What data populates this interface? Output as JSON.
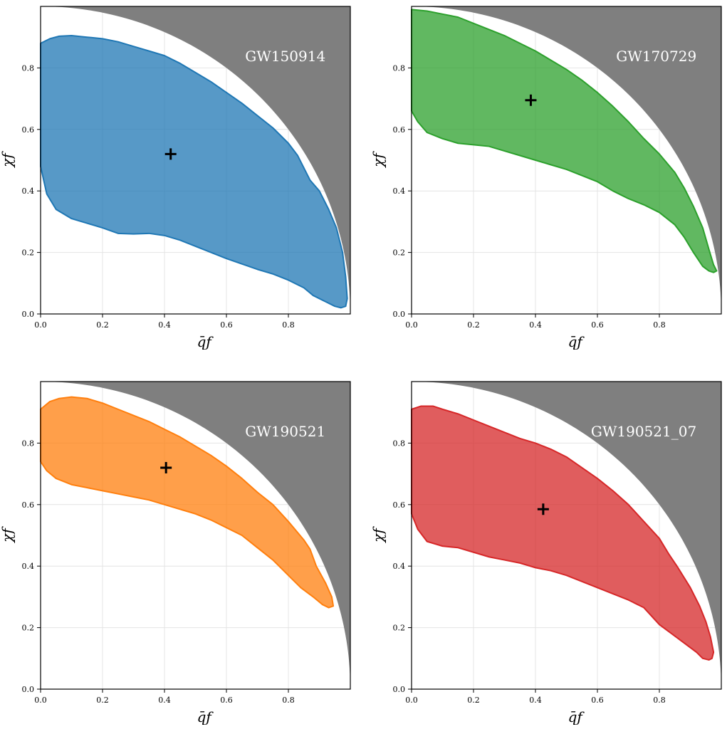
{
  "figure": {
    "shaded_region": "grey area above the unit circle chi_f^2 + qbar_f^2 = 1",
    "shade_color": "#7f7f7f"
  },
  "chart_data": [
    {
      "type": "area",
      "title": "",
      "event": "GW150914",
      "xlabel": "q̄f",
      "ylabel": "χf",
      "xlim": [
        0.0,
        1.0
      ],
      "ylim": [
        0.0,
        1.0
      ],
      "xticks": [
        "0.0",
        "0.2",
        "0.4",
        "0.6",
        "0.8"
      ],
      "yticks": [
        "0.0",
        "0.2",
        "0.4",
        "0.6",
        "0.8"
      ],
      "grid": true,
      "color": "#1f77b4",
      "marker": {
        "x": 0.42,
        "y": 0.52
      },
      "contour": [
        [
          0.0,
          0.88
        ],
        [
          0.03,
          0.895
        ],
        [
          0.06,
          0.903
        ],
        [
          0.1,
          0.905
        ],
        [
          0.15,
          0.9
        ],
        [
          0.2,
          0.895
        ],
        [
          0.25,
          0.885
        ],
        [
          0.3,
          0.87
        ],
        [
          0.35,
          0.855
        ],
        [
          0.4,
          0.84
        ],
        [
          0.45,
          0.815
        ],
        [
          0.5,
          0.785
        ],
        [
          0.55,
          0.755
        ],
        [
          0.6,
          0.72
        ],
        [
          0.65,
          0.685
        ],
        [
          0.7,
          0.645
        ],
        [
          0.75,
          0.605
        ],
        [
          0.8,
          0.555
        ],
        [
          0.83,
          0.515
        ],
        [
          0.85,
          0.475
        ],
        [
          0.87,
          0.435
        ],
        [
          0.9,
          0.4
        ],
        [
          0.93,
          0.34
        ],
        [
          0.955,
          0.28
        ],
        [
          0.975,
          0.2
        ],
        [
          0.985,
          0.12
        ],
        [
          0.99,
          0.05
        ],
        [
          0.985,
          0.025
        ],
        [
          0.97,
          0.02
        ],
        [
          0.95,
          0.025
        ],
        [
          0.92,
          0.04
        ],
        [
          0.88,
          0.06
        ],
        [
          0.85,
          0.085
        ],
        [
          0.8,
          0.11
        ],
        [
          0.75,
          0.13
        ],
        [
          0.7,
          0.145
        ],
        [
          0.6,
          0.18
        ],
        [
          0.5,
          0.22
        ],
        [
          0.45,
          0.24
        ],
        [
          0.4,
          0.255
        ],
        [
          0.35,
          0.262
        ],
        [
          0.3,
          0.26
        ],
        [
          0.25,
          0.262
        ],
        [
          0.2,
          0.28
        ],
        [
          0.15,
          0.295
        ],
        [
          0.1,
          0.31
        ],
        [
          0.05,
          0.34
        ],
        [
          0.02,
          0.39
        ],
        [
          0.0,
          0.48
        ]
      ]
    },
    {
      "type": "area",
      "title": "",
      "event": "GW170729",
      "xlabel": "q̄f",
      "ylabel": "χf",
      "xlim": [
        0.0,
        1.0
      ],
      "ylim": [
        0.0,
        1.0
      ],
      "xticks": [
        "0.0",
        "0.2",
        "0.4",
        "0.6",
        "0.8"
      ],
      "yticks": [
        "0.0",
        "0.2",
        "0.4",
        "0.6",
        "0.8"
      ],
      "grid": true,
      "color": "#2ca02c",
      "marker": {
        "x": 0.385,
        "y": 0.695
      },
      "contour": [
        [
          0.0,
          0.99
        ],
        [
          0.05,
          0.985
        ],
        [
          0.1,
          0.975
        ],
        [
          0.15,
          0.965
        ],
        [
          0.2,
          0.945
        ],
        [
          0.25,
          0.925
        ],
        [
          0.3,
          0.905
        ],
        [
          0.35,
          0.88
        ],
        [
          0.4,
          0.855
        ],
        [
          0.45,
          0.825
        ],
        [
          0.5,
          0.795
        ],
        [
          0.55,
          0.76
        ],
        [
          0.6,
          0.72
        ],
        [
          0.65,
          0.675
        ],
        [
          0.7,
          0.625
        ],
        [
          0.75,
          0.57
        ],
        [
          0.8,
          0.52
        ],
        [
          0.85,
          0.46
        ],
        [
          0.88,
          0.41
        ],
        [
          0.91,
          0.35
        ],
        [
          0.94,
          0.28
        ],
        [
          0.96,
          0.21
        ],
        [
          0.975,
          0.16
        ],
        [
          0.985,
          0.14
        ],
        [
          0.975,
          0.135
        ],
        [
          0.96,
          0.14
        ],
        [
          0.94,
          0.155
        ],
        [
          0.91,
          0.2
        ],
        [
          0.88,
          0.25
        ],
        [
          0.85,
          0.29
        ],
        [
          0.8,
          0.33
        ],
        [
          0.75,
          0.355
        ],
        [
          0.7,
          0.375
        ],
        [
          0.65,
          0.4
        ],
        [
          0.6,
          0.43
        ],
        [
          0.55,
          0.45
        ],
        [
          0.5,
          0.47
        ],
        [
          0.45,
          0.485
        ],
        [
          0.4,
          0.5
        ],
        [
          0.35,
          0.515
        ],
        [
          0.3,
          0.53
        ],
        [
          0.25,
          0.545
        ],
        [
          0.2,
          0.55
        ],
        [
          0.15,
          0.555
        ],
        [
          0.1,
          0.57
        ],
        [
          0.05,
          0.59
        ],
        [
          0.02,
          0.625
        ],
        [
          0.0,
          0.66
        ]
      ]
    },
    {
      "type": "area",
      "title": "",
      "event": "GW190521",
      "xlabel": "q̄f",
      "ylabel": "χf",
      "xlim": [
        0.0,
        1.0
      ],
      "ylim": [
        0.0,
        1.0
      ],
      "xticks": [
        "0.0",
        "0.2",
        "0.4",
        "0.6",
        "0.8"
      ],
      "yticks": [
        "0.0",
        "0.2",
        "0.4",
        "0.6",
        "0.8"
      ],
      "grid": true,
      "color": "#ff7f0e",
      "marker": {
        "x": 0.405,
        "y": 0.72
      },
      "contour": [
        [
          0.0,
          0.91
        ],
        [
          0.03,
          0.935
        ],
        [
          0.06,
          0.945
        ],
        [
          0.1,
          0.95
        ],
        [
          0.15,
          0.945
        ],
        [
          0.2,
          0.93
        ],
        [
          0.25,
          0.91
        ],
        [
          0.3,
          0.89
        ],
        [
          0.35,
          0.87
        ],
        [
          0.4,
          0.845
        ],
        [
          0.45,
          0.82
        ],
        [
          0.5,
          0.79
        ],
        [
          0.55,
          0.76
        ],
        [
          0.6,
          0.725
        ],
        [
          0.65,
          0.685
        ],
        [
          0.7,
          0.64
        ],
        [
          0.75,
          0.6
        ],
        [
          0.8,
          0.545
        ],
        [
          0.85,
          0.485
        ],
        [
          0.87,
          0.455
        ],
        [
          0.89,
          0.4
        ],
        [
          0.92,
          0.345
        ],
        [
          0.94,
          0.3
        ],
        [
          0.945,
          0.27
        ],
        [
          0.93,
          0.265
        ],
        [
          0.91,
          0.275
        ],
        [
          0.88,
          0.3
        ],
        [
          0.84,
          0.33
        ],
        [
          0.8,
          0.37
        ],
        [
          0.75,
          0.42
        ],
        [
          0.7,
          0.46
        ],
        [
          0.65,
          0.5
        ],
        [
          0.6,
          0.525
        ],
        [
          0.55,
          0.55
        ],
        [
          0.5,
          0.57
        ],
        [
          0.45,
          0.585
        ],
        [
          0.4,
          0.6
        ],
        [
          0.35,
          0.615
        ],
        [
          0.3,
          0.625
        ],
        [
          0.25,
          0.635
        ],
        [
          0.2,
          0.645
        ],
        [
          0.15,
          0.655
        ],
        [
          0.1,
          0.665
        ],
        [
          0.05,
          0.685
        ],
        [
          0.02,
          0.71
        ],
        [
          0.0,
          0.74
        ]
      ]
    },
    {
      "type": "area",
      "title": "",
      "event": "GW190521_07",
      "xlabel": "q̄f",
      "ylabel": "χf",
      "xlim": [
        0.0,
        1.0
      ],
      "ylim": [
        0.0,
        1.0
      ],
      "xticks": [
        "0.0",
        "0.2",
        "0.4",
        "0.6",
        "0.8"
      ],
      "yticks": [
        "0.0",
        "0.2",
        "0.4",
        "0.6",
        "0.8"
      ],
      "grid": true,
      "color": "#d62728",
      "marker": {
        "x": 0.425,
        "y": 0.585
      },
      "contour": [
        [
          0.0,
          0.91
        ],
        [
          0.03,
          0.92
        ],
        [
          0.07,
          0.92
        ],
        [
          0.1,
          0.91
        ],
        [
          0.15,
          0.895
        ],
        [
          0.2,
          0.875
        ],
        [
          0.25,
          0.855
        ],
        [
          0.3,
          0.835
        ],
        [
          0.35,
          0.815
        ],
        [
          0.4,
          0.8
        ],
        [
          0.45,
          0.78
        ],
        [
          0.5,
          0.755
        ],
        [
          0.55,
          0.72
        ],
        [
          0.6,
          0.685
        ],
        [
          0.65,
          0.645
        ],
        [
          0.7,
          0.6
        ],
        [
          0.75,
          0.545
        ],
        [
          0.8,
          0.49
        ],
        [
          0.83,
          0.44
        ],
        [
          0.86,
          0.395
        ],
        [
          0.9,
          0.33
        ],
        [
          0.93,
          0.27
        ],
        [
          0.95,
          0.22
        ],
        [
          0.965,
          0.17
        ],
        [
          0.975,
          0.12
        ],
        [
          0.97,
          0.1
        ],
        [
          0.96,
          0.095
        ],
        [
          0.94,
          0.1
        ],
        [
          0.92,
          0.12
        ],
        [
          0.88,
          0.15
        ],
        [
          0.84,
          0.18
        ],
        [
          0.8,
          0.21
        ],
        [
          0.75,
          0.265
        ],
        [
          0.7,
          0.29
        ],
        [
          0.65,
          0.31
        ],
        [
          0.6,
          0.33
        ],
        [
          0.55,
          0.35
        ],
        [
          0.5,
          0.37
        ],
        [
          0.45,
          0.385
        ],
        [
          0.4,
          0.395
        ],
        [
          0.35,
          0.41
        ],
        [
          0.3,
          0.42
        ],
        [
          0.25,
          0.43
        ],
        [
          0.2,
          0.445
        ],
        [
          0.15,
          0.46
        ],
        [
          0.1,
          0.465
        ],
        [
          0.05,
          0.48
        ],
        [
          0.02,
          0.52
        ],
        [
          0.0,
          0.57
        ]
      ]
    }
  ]
}
